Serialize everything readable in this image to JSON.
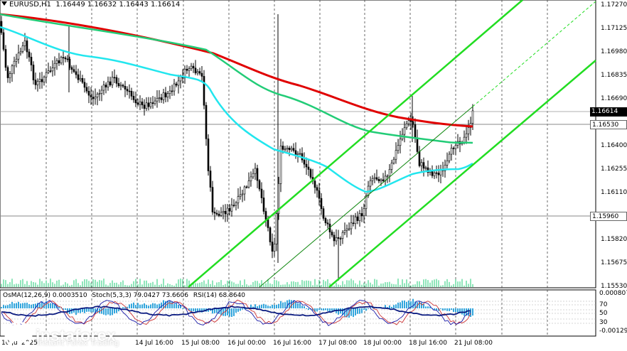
{
  "header": {
    "symbol": "EURUSD,H1",
    "ohlc": "1.16449 1.16632 1.16443 1.16614"
  },
  "subwindow": {
    "osma": "OsMA(12,26,9) 0.0003510",
    "stoch": "Stoch(5,3,3) 79.0427 73.6606",
    "rsi": "RSI(14) 68.8640"
  },
  "price_axis": [
    "1.17270",
    "1.17125",
    "1.16980",
    "1.16835",
    "1.16690",
    "1.16400",
    "1.16255",
    "1.16110",
    "1.15820",
    "1.15675",
    "1.15530"
  ],
  "price_tags": {
    "current": "1.16614",
    "level_mid": "1.16530",
    "level_low": "1.15960"
  },
  "indicator_axis": [
    "0.000807",
    "70",
    "50",
    "30",
    "-0.001294"
  ],
  "time_axis": [
    "10 Jul 2025",
    "14 Jul 16:00",
    "15 Jul 08:00",
    "16 Jul 00:00",
    "16 Jul 16:00",
    "17 Jul 08:00",
    "18 Jul 00:00",
    "18 Jul 16:00",
    "21 Jul 08:00"
  ],
  "branding": {
    "name": "instaforex",
    "slogan": "Instant Forex Trading"
  },
  "colors": {
    "ma_red": "#e00000",
    "ma_green": "#22cc77",
    "ma_cyan": "#22e6ee",
    "channel": "#22dd22",
    "histogram": "#33a6dd",
    "stoch_main": "#1a1aa8",
    "stoch_signal": "#cc3333",
    "logo_green": "#35b64a"
  }
}
